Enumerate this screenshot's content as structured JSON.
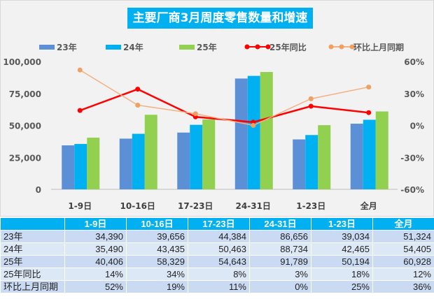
{
  "chart_data": {
    "type": "bar+line",
    "title": "主要厂商3月周度零售数量和增速",
    "categories": [
      "1-9日",
      "10-16日",
      "17-23日",
      "24-31日",
      "1-23日",
      "全月"
    ],
    "bar_series": [
      {
        "name": "23年",
        "color": "#5b8fd6",
        "values": [
          34390,
          39656,
          44384,
          86656,
          39034,
          51324
        ]
      },
      {
        "name": "24年",
        "color": "#00b0f0",
        "values": [
          35490,
          43435,
          50463,
          88734,
          42465,
          54405
        ]
      },
      {
        "name": "25年",
        "color": "#92d050",
        "values": [
          40406,
          58329,
          54643,
          91789,
          50194,
          60928
        ]
      }
    ],
    "line_series": [
      {
        "name": "25年同比",
        "color": "#ff0000",
        "values": [
          14,
          34,
          8,
          3,
          18,
          12
        ]
      },
      {
        "name": "环比上月同期",
        "color": "#f4b183",
        "marker": "#f0a060",
        "values": [
          52,
          19,
          11,
          0,
          25,
          36
        ]
      }
    ],
    "y_left": {
      "range": [
        0,
        100000
      ],
      "ticks": [
        "0",
        "25,000",
        "50,000",
        "75,000",
        "100,000"
      ]
    },
    "y_right": {
      "range": [
        -60,
        60
      ],
      "ticks": [
        "-60%",
        "-30%",
        "0%",
        "30%",
        "60%"
      ]
    },
    "legend": "top",
    "grid": false
  },
  "table": {
    "headers": [
      "",
      "1-9日",
      "10-16日",
      "17-23日",
      "24-31日",
      "1-23日",
      "全月"
    ],
    "rows": [
      [
        "23年",
        "34,390",
        "39,656",
        "44,384",
        "86,656",
        "39,034",
        "51,324"
      ],
      [
        "24年",
        "35,490",
        "43,435",
        "50,463",
        "88,734",
        "42,465",
        "54,405"
      ],
      [
        "25年",
        "40,406",
        "58,329",
        "54,643",
        "91,789",
        "50,194",
        "60,928"
      ],
      [
        "25年同比",
        "14%",
        "34%",
        "8%",
        "3%",
        "18%",
        "12%"
      ],
      [
        "环比上月同期",
        "52%",
        "19%",
        "11%",
        "0%",
        "25%",
        "36%"
      ]
    ]
  }
}
